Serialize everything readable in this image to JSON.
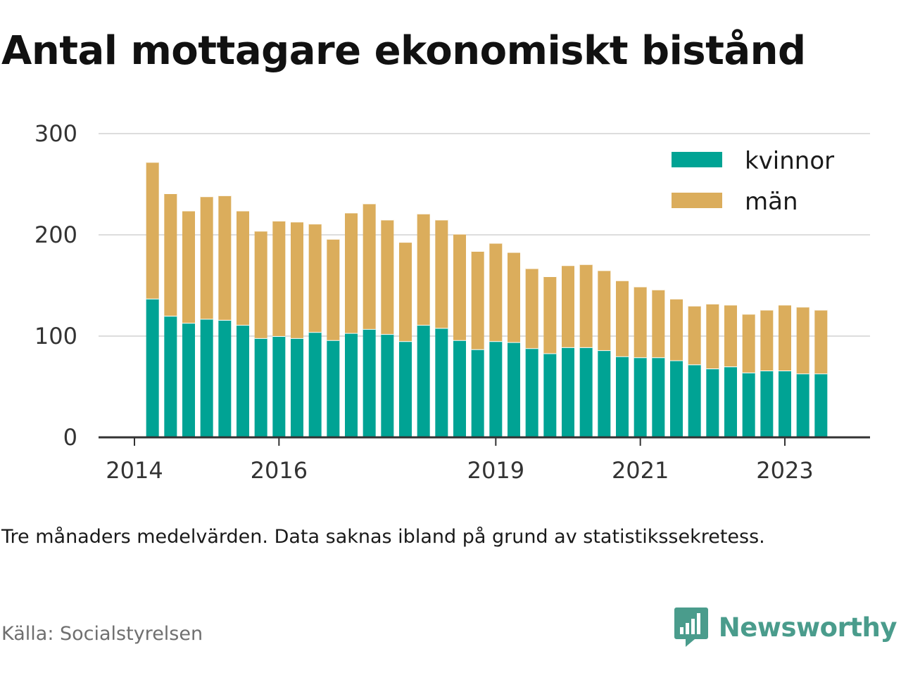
{
  "title": "Antal mottagare ekonomiskt bistånd",
  "note": "Tre månaders medelvärden. Data saknas ibland på grund av statistikssekretess.",
  "source": "Källa: Socialstyrelsen",
  "brand": {
    "name": "Newsworthy",
    "color": "#4a9c8c",
    "icon": "newsworthy-logo-icon"
  },
  "colors": {
    "kvinnor": "#00a394",
    "man": "#dbad5c",
    "grid": "#dddddd",
    "axis": "#333333",
    "text": "#333333"
  },
  "chart_data": {
    "type": "bar",
    "stacked": true,
    "x": [
      "2014-04",
      "2014-07",
      "2014-10",
      "2015-01",
      "2015-04",
      "2015-07",
      "2015-10",
      "2016-01",
      "2016-04",
      "2016-07",
      "2016-10",
      "2017-01",
      "2017-04",
      "2017-07",
      "2017-10",
      "2018-01",
      "2018-04",
      "2018-07",
      "2018-10",
      "2019-01",
      "2019-04",
      "2019-07",
      "2019-10",
      "2020-01",
      "2020-04",
      "2020-07",
      "2020-10",
      "2021-01",
      "2021-04",
      "2021-07",
      "2021-10",
      "2022-01",
      "2022-04",
      "2022-07",
      "2022-10",
      "2023-01",
      "2023-04",
      "2023-07"
    ],
    "series": [
      {
        "name": "kvinnor",
        "color": "#00a394",
        "values": [
          137,
          120,
          113,
          117,
          116,
          111,
          98,
          100,
          98,
          104,
          96,
          103,
          107,
          102,
          95,
          111,
          108,
          96,
          87,
          95,
          94,
          88,
          83,
          89,
          89,
          86,
          80,
          79,
          79,
          76,
          72,
          68,
          70,
          64,
          66,
          66,
          63,
          63
        ]
      },
      {
        "name": "män",
        "color": "#dbad5c",
        "values": [
          135,
          121,
          111,
          121,
          123,
          113,
          106,
          114,
          115,
          107,
          100,
          119,
          124,
          113,
          98,
          110,
          107,
          105,
          97,
          97,
          89,
          79,
          76,
          81,
          82,
          79,
          75,
          70,
          67,
          61,
          58,
          64,
          61,
          58,
          60,
          65,
          66,
          63
        ]
      }
    ],
    "x_ticks": [
      {
        "label": "2014",
        "x": "2014-01"
      },
      {
        "label": "2016",
        "x": "2016-01"
      },
      {
        "label": "2019",
        "x": "2019-01"
      },
      {
        "label": "2021",
        "x": "2021-01"
      },
      {
        "label": "2023",
        "x": "2023-01"
      }
    ],
    "y_ticks": [
      "0",
      "100",
      "200",
      "300"
    ],
    "ylim": [
      0,
      300
    ],
    "grid": true,
    "legend_position": "top-right"
  }
}
